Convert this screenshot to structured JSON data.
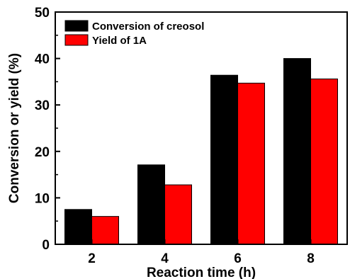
{
  "chart_data": {
    "type": "bar",
    "categories": [
      "2",
      "4",
      "6",
      "8"
    ],
    "series": [
      {
        "name": "Conversion of creosol",
        "values": [
          7.5,
          17.1,
          36.4,
          40.0
        ],
        "color": "#000000"
      },
      {
        "name": "Yield of 1A",
        "values": [
          6.0,
          12.8,
          34.7,
          35.6
        ],
        "color": "#ff0000"
      }
    ],
    "xlabel": "Reaction time (h)",
    "ylabel": "Conversion or yield (%)",
    "ylim": [
      0,
      50
    ],
    "yticks": [
      0,
      10,
      20,
      30,
      40,
      50
    ],
    "grid": false,
    "legend_position": "top-left"
  }
}
